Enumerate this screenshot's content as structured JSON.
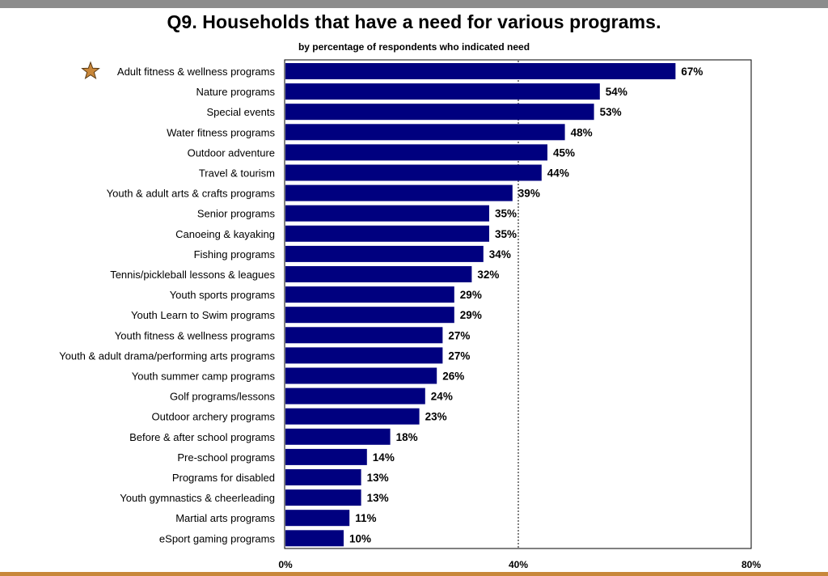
{
  "chart_data": {
    "type": "bar",
    "orientation": "horizontal",
    "title": "Q9. Households that have a need for various programs.",
    "subtitle": "by percentage of respondents who indicated need",
    "categories": [
      "Adult fitness & wellness programs",
      "Nature programs",
      "Special events",
      "Water fitness programs",
      "Outdoor adventure",
      "Travel & tourism",
      "Youth & adult arts & crafts programs",
      "Senior programs",
      "Canoeing & kayaking",
      "Fishing programs",
      "Tennis/pickleball lessons & leagues",
      "Youth sports programs",
      "Youth Learn to Swim programs",
      "Youth fitness & wellness programs",
      "Youth & adult drama/performing arts programs",
      "Youth summer camp programs",
      "Golf programs/lessons",
      "Outdoor archery programs",
      "Before & after school programs",
      "Pre-school programs",
      "Programs for disabled",
      "Youth gymnastics & cheerleading",
      "Martial arts programs",
      "eSport gaming programs"
    ],
    "values": [
      67,
      54,
      53,
      48,
      45,
      44,
      39,
      35,
      35,
      34,
      32,
      29,
      29,
      27,
      27,
      26,
      24,
      23,
      18,
      14,
      13,
      13,
      11,
      10
    ],
    "value_labels": [
      "67%",
      "54%",
      "53%",
      "48%",
      "45%",
      "44%",
      "39%",
      "35%",
      "35%",
      "34%",
      "32%",
      "29%",
      "29%",
      "27%",
      "27%",
      "26%",
      "24%",
      "23%",
      "18%",
      "14%",
      "13%",
      "13%",
      "11%",
      "10%"
    ],
    "xlim": [
      0,
      80
    ],
    "xticks": [
      0,
      40,
      80
    ],
    "xtick_labels": [
      "0%",
      "40%",
      "80%"
    ],
    "reference_line": 40,
    "highlighted_category": "Adult fitness & wellness programs",
    "highlight_icon": "star-icon",
    "colors": {
      "bar": "#00007f",
      "star": "#c8873a",
      "top_bar": "#8c8c8c",
      "bottom_bar": "#c8873a"
    }
  }
}
